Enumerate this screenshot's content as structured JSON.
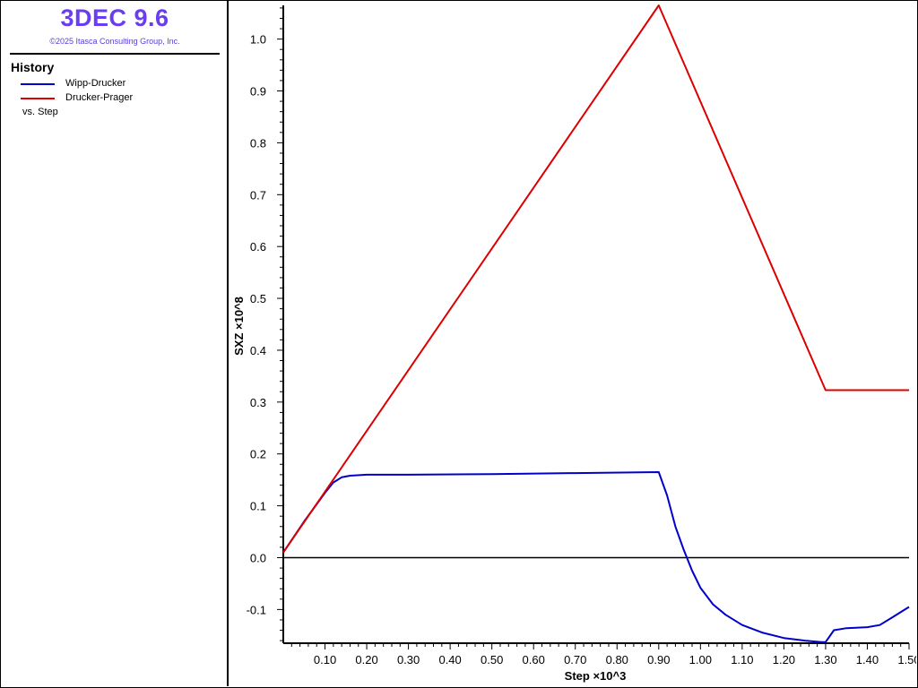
{
  "app": {
    "title": "3DEC 9.6",
    "copyright": "©2025 Itasca Consulting Group, Inc."
  },
  "legend": {
    "heading": "History",
    "vs_label": "vs. Step"
  },
  "chart_data": {
    "type": "line",
    "xlabel": "Step ×10^3",
    "ylabel": "SXZ ×10^8",
    "xlim": [
      0.0,
      1.5
    ],
    "ylim": [
      -0.165,
      1.065
    ],
    "grid": false,
    "legend_position": "left-panel",
    "x_ticks": [
      "0.10",
      "0.20",
      "0.30",
      "0.40",
      "0.50",
      "0.60",
      "0.70",
      "0.80",
      "0.90",
      "1.00",
      "1.10",
      "1.20",
      "1.30",
      "1.40",
      "1.50"
    ],
    "y_ticks": [
      "-0.1",
      "0.0",
      "0.1",
      "0.2",
      "0.3",
      "0.4",
      "0.5",
      "0.6",
      "0.7",
      "0.8",
      "0.9",
      "1.0"
    ],
    "zero_line": 0.0,
    "series": [
      {
        "name": "Wipp-Drucker",
        "color": "#0000cc",
        "x": [
          0.0,
          0.05,
          0.1,
          0.12,
          0.14,
          0.16,
          0.2,
          0.3,
          0.5,
          0.7,
          0.9,
          0.92,
          0.94,
          0.96,
          0.98,
          1.0,
          1.03,
          1.06,
          1.1,
          1.15,
          1.2,
          1.25,
          1.29,
          1.3,
          1.32,
          1.35,
          1.4,
          1.43,
          1.46,
          1.5
        ],
        "y": [
          0.01,
          0.07,
          0.125,
          0.145,
          0.155,
          0.158,
          0.16,
          0.16,
          0.161,
          0.163,
          0.165,
          0.12,
          0.06,
          0.015,
          -0.025,
          -0.058,
          -0.09,
          -0.11,
          -0.13,
          -0.145,
          -0.155,
          -0.16,
          -0.163,
          -0.163,
          -0.14,
          -0.136,
          -0.134,
          -0.13,
          -0.115,
          -0.095
        ]
      },
      {
        "name": "Drucker-Prager",
        "color": "#dd0000",
        "x": [
          0.0,
          0.9,
          1.3,
          1.5
        ],
        "y": [
          0.01,
          1.065,
          0.323,
          0.323
        ]
      }
    ]
  }
}
